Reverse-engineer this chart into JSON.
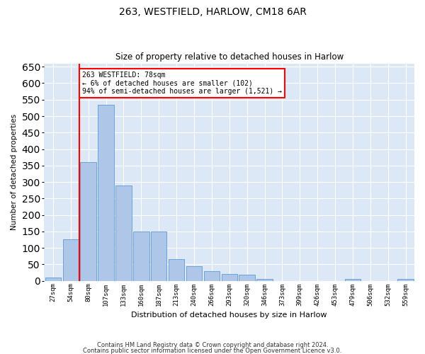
{
  "title1": "263, WESTFIELD, HARLOW, CM18 6AR",
  "title2": "Size of property relative to detached houses in Harlow",
  "xlabel": "Distribution of detached houses by size in Harlow",
  "ylabel": "Number of detached properties",
  "categories": [
    "27sqm",
    "54sqm",
    "80sqm",
    "107sqm",
    "133sqm",
    "160sqm",
    "187sqm",
    "213sqm",
    "240sqm",
    "266sqm",
    "293sqm",
    "320sqm",
    "346sqm",
    "373sqm",
    "399sqm",
    "426sqm",
    "453sqm",
    "479sqm",
    "506sqm",
    "532sqm",
    "559sqm"
  ],
  "values": [
    10,
    125,
    360,
    535,
    290,
    150,
    150,
    65,
    45,
    30,
    20,
    18,
    5,
    0,
    0,
    0,
    0,
    5,
    0,
    0,
    5
  ],
  "bar_color": "#aec6e8",
  "bar_edge_color": "#5b9bd5",
  "annotation_text": "263 WESTFIELD: 78sqm\n← 6% of detached houses are smaller (102)\n94% of semi-detached houses are larger (1,521) →",
  "annotation_box_color": "white",
  "annotation_box_edge": "red",
  "vline_color": "red",
  "ylim": [
    0,
    660
  ],
  "yticks": [
    0,
    50,
    100,
    150,
    200,
    250,
    300,
    350,
    400,
    450,
    500,
    550,
    600,
    650
  ],
  "background_color": "#dce8f5",
  "grid_color": "white",
  "footer1": "Contains HM Land Registry data © Crown copyright and database right 2024.",
  "footer2": "Contains public sector information licensed under the Open Government Licence v3.0."
}
